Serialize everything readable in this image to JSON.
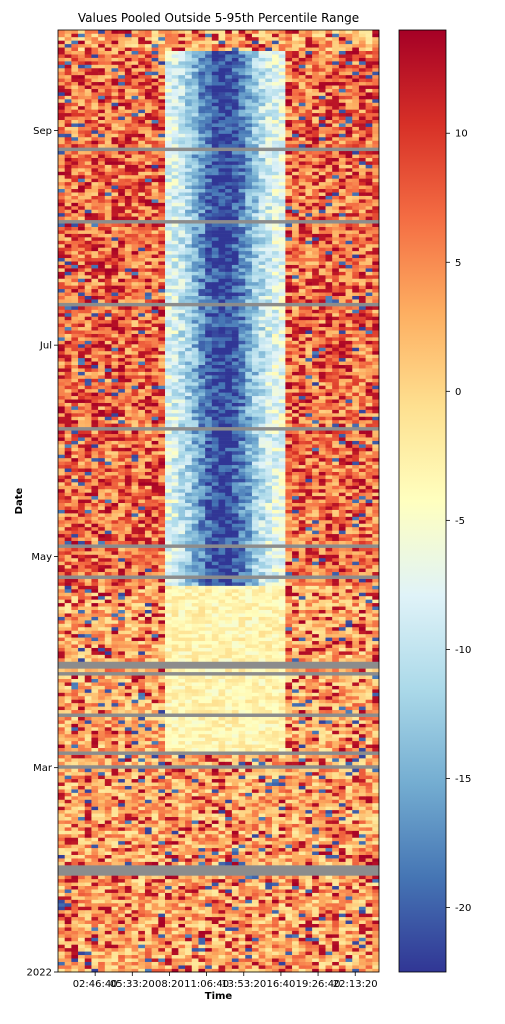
{
  "chart_data": {
    "type": "heatmap",
    "title": "Values Pooled Outside 5-95th Percentile Range",
    "xlabel": "Time",
    "ylabel": "Date",
    "x_tick_labels": [
      "02:46:40",
      "05:33:20",
      "08:20",
      "11:06:40",
      "13:53:20",
      "16:40",
      "19:26:40",
      "22:13:20"
    ],
    "x_tick_seconds": [
      10000,
      20000,
      30000,
      40000,
      50000,
      60000,
      70000,
      80000
    ],
    "xlim_seconds": [
      0,
      86400
    ],
    "y_tick_labels": [
      "2022",
      "Mar",
      "May",
      "Jul",
      "Sep"
    ],
    "y_tick_dates": [
      "2022-01-01",
      "2022-03-01",
      "2022-05-01",
      "2022-07-01",
      "2022-09-01"
    ],
    "ylim_dates": [
      "2022-01-01",
      "2022-09-30"
    ],
    "y_direction": "2022 at bottom, later dates toward top",
    "colormap": "RdYlBu_r",
    "colorbar_range": [
      -22.5,
      14
    ],
    "colorbar_ticks": [
      -20,
      -15,
      -10,
      -5,
      0,
      5,
      10
    ],
    "colorbar_tick_labels": [
      "-20",
      "-15",
      "-10",
      "-5",
      "0",
      "5",
      "10"
    ],
    "missing_color": "#8c8c8c",
    "pattern_summary": "Daytime (about 08:20 to 16:40) strongly negative from late April through September, deepest around 11:00-14:00; mildly negative daytime in March-April; night hours mostly positive with many saturated red cells; grey rows mark missing days",
    "grid": false
  }
}
